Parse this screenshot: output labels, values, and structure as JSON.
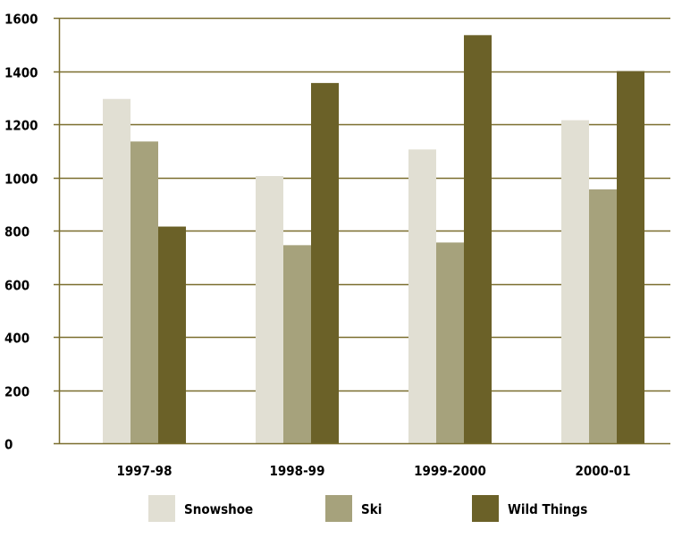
{
  "chart_data": {
    "type": "bar",
    "title": "",
    "xlabel": "",
    "ylabel": "",
    "categories": [
      "1997-98",
      "1998-99",
      "1999-2000",
      "2000-01"
    ],
    "series": [
      {
        "name": "Snowshoe",
        "values": [
          1295,
          1005,
          1105,
          1215
        ],
        "color": "#e1dfd3"
      },
      {
        "name": "Ski",
        "values": [
          1135,
          745,
          755,
          955
        ],
        "color": "#a6a27c"
      },
      {
        "name": "Wild Things",
        "values": [
          815,
          1355,
          1535,
          1400
        ],
        "color": "#6b6128"
      }
    ],
    "ylim": [
      0,
      1600
    ],
    "yticks": [
      "0",
      "200",
      "400",
      "600",
      "800",
      "1000",
      "1200",
      "1400",
      "1600"
    ],
    "grid": "horizontal",
    "legend_position": "bottom",
    "axis_color": "#7a6e2e",
    "grid_color": "#7a6e2e"
  }
}
